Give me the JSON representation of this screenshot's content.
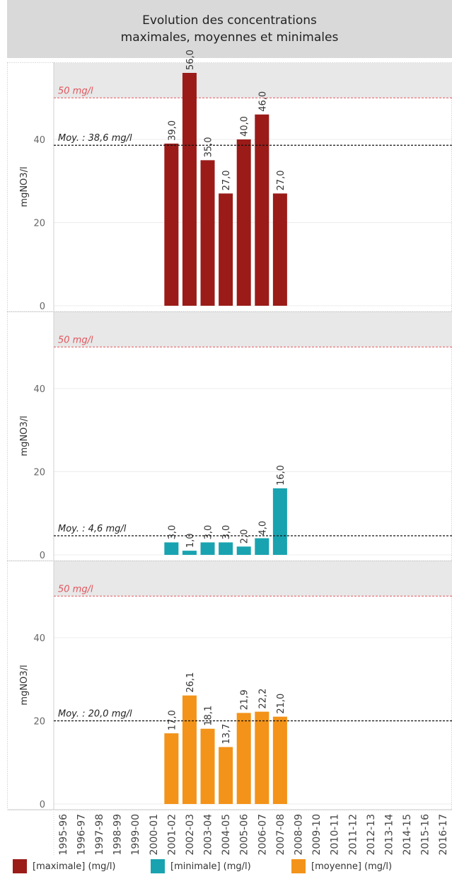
{
  "title_lines": [
    "Evolution des concentrations",
    "maximales, moyennes et minimales"
  ],
  "colors": {
    "maximale": "#9b1b18",
    "minimale": "#19a3b0",
    "moyenne": "#f39319",
    "threshold_line": "#e0565d",
    "mean_line": "#111111",
    "band": "#e8e8e8"
  },
  "legend": [
    {
      "label": "[maximale] (mg/l)",
      "color": "#9b1b18"
    },
    {
      "label": "[minimale] (mg/l)",
      "color": "#19a3b0"
    },
    {
      "label": "[moyenne] (mg/l)",
      "color": "#f39319"
    }
  ],
  "chart_data": [
    {
      "type": "bar",
      "ylabel": "mgNO3/l",
      "ylim": [
        0,
        56
      ],
      "yticks": [
        0,
        20,
        40
      ],
      "threshold": {
        "value": 50,
        "label": "50 mg/l"
      },
      "mean": {
        "value": 38.6,
        "label": "Moy. : 38,6 mg/l"
      },
      "series": [
        {
          "name": "[maximale] (mg/l)",
          "color": "#9b1b18",
          "values": [
            null,
            null,
            null,
            null,
            null,
            null,
            39.0,
            56.0,
            35.0,
            27.0,
            40.0,
            46.0,
            27.0,
            null,
            null,
            null,
            null,
            null,
            null,
            null,
            null,
            null
          ],
          "labels": [
            null,
            null,
            null,
            null,
            null,
            null,
            "39,0",
            "56,0",
            "35,0",
            "27,0",
            "40,0",
            "46,0",
            "27,0",
            null,
            null,
            null,
            null,
            null,
            null,
            null,
            null,
            null
          ]
        }
      ]
    },
    {
      "type": "bar",
      "ylabel": "mgNO3/l",
      "ylim": [
        0,
        56
      ],
      "yticks": [
        0,
        20,
        40
      ],
      "threshold": {
        "value": 50,
        "label": "50 mg/l"
      },
      "mean": {
        "value": 4.6,
        "label": "Moy. : 4,6 mg/l"
      },
      "series": [
        {
          "name": "[minimale] (mg/l)",
          "color": "#19a3b0",
          "values": [
            null,
            null,
            null,
            null,
            null,
            null,
            3.0,
            1.0,
            3.0,
            3.0,
            2.0,
            4.0,
            16.0,
            null,
            null,
            null,
            null,
            null,
            null,
            null,
            null,
            null
          ],
          "labels": [
            null,
            null,
            null,
            null,
            null,
            null,
            "3,0",
            "1,0",
            "3,0",
            "3,0",
            "2,0",
            "4,0",
            "16,0",
            null,
            null,
            null,
            null,
            null,
            null,
            null,
            null,
            null
          ]
        }
      ]
    },
    {
      "type": "bar",
      "ylabel": "mgNO3/l",
      "ylim": [
        0,
        56
      ],
      "yticks": [
        0,
        20,
        40
      ],
      "threshold": {
        "value": 50,
        "label": "50 mg/l"
      },
      "mean": {
        "value": 20.0,
        "label": "Moy. : 20,0 mg/l"
      },
      "series": [
        {
          "name": "[moyenne] (mg/l)",
          "color": "#f39319",
          "values": [
            null,
            null,
            null,
            null,
            null,
            null,
            17.0,
            26.1,
            18.1,
            13.7,
            21.9,
            22.2,
            21.0,
            null,
            null,
            null,
            null,
            null,
            null,
            null,
            null,
            null
          ],
          "labels": [
            null,
            null,
            null,
            null,
            null,
            null,
            "17,0",
            "26,1",
            "18,1",
            "13,7",
            "21,9",
            "22,2",
            "21,0",
            null,
            null,
            null,
            null,
            null,
            null,
            null,
            null,
            null
          ]
        }
      ]
    }
  ],
  "categories": [
    "1995-96",
    "1996-97",
    "1997-98",
    "1998-99",
    "1999-00",
    "2000-01",
    "2001-02",
    "2002-03",
    "2003-04",
    "2004-05",
    "2005-06",
    "2006-07",
    "2007-08",
    "2008-09",
    "2009-10",
    "2010-11",
    "2011-12",
    "2012-13",
    "2013-14",
    "2014-15",
    "2015-16",
    "2016-17"
  ]
}
